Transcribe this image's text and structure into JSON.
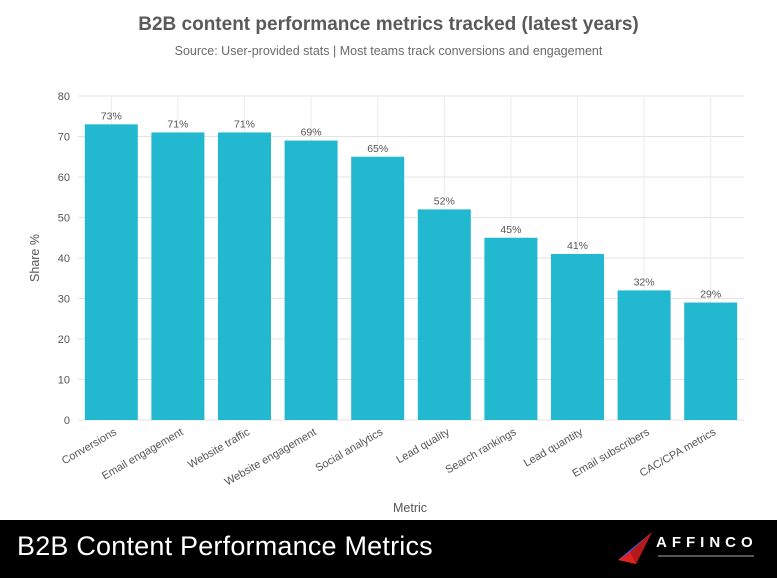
{
  "chart_data": {
    "type": "bar",
    "title": "B2B content performance metrics tracked (latest years)",
    "subtitle": "Source: User-provided stats | Most teams track conversions and engagement",
    "xlabel": "Metric",
    "ylabel": "Share %",
    "ylim": [
      0,
      80
    ],
    "yticks": [
      0,
      10,
      20,
      30,
      40,
      50,
      60,
      70,
      80
    ],
    "grid": true,
    "bar_color": "#22b8cf",
    "categories": [
      "Conversions",
      "Email engagement",
      "Website traffic",
      "Website engagement",
      "Social analytics",
      "Lead quality",
      "Search rankings",
      "Lead quantity",
      "Email subscribers",
      "CAC/CPA metrics"
    ],
    "values": [
      73,
      71,
      71,
      69,
      65,
      52,
      45,
      41,
      32,
      29
    ],
    "data_labels": [
      "73%",
      "71%",
      "71%",
      "69%",
      "65%",
      "52%",
      "45%",
      "41%",
      "32%",
      "29%"
    ]
  },
  "footer": {
    "title": "B2B Content Performance Metrics",
    "brand": "AFFINCO",
    "brand_colors": {
      "primary": "#e02424",
      "secondary": "#2b5fd9"
    }
  }
}
